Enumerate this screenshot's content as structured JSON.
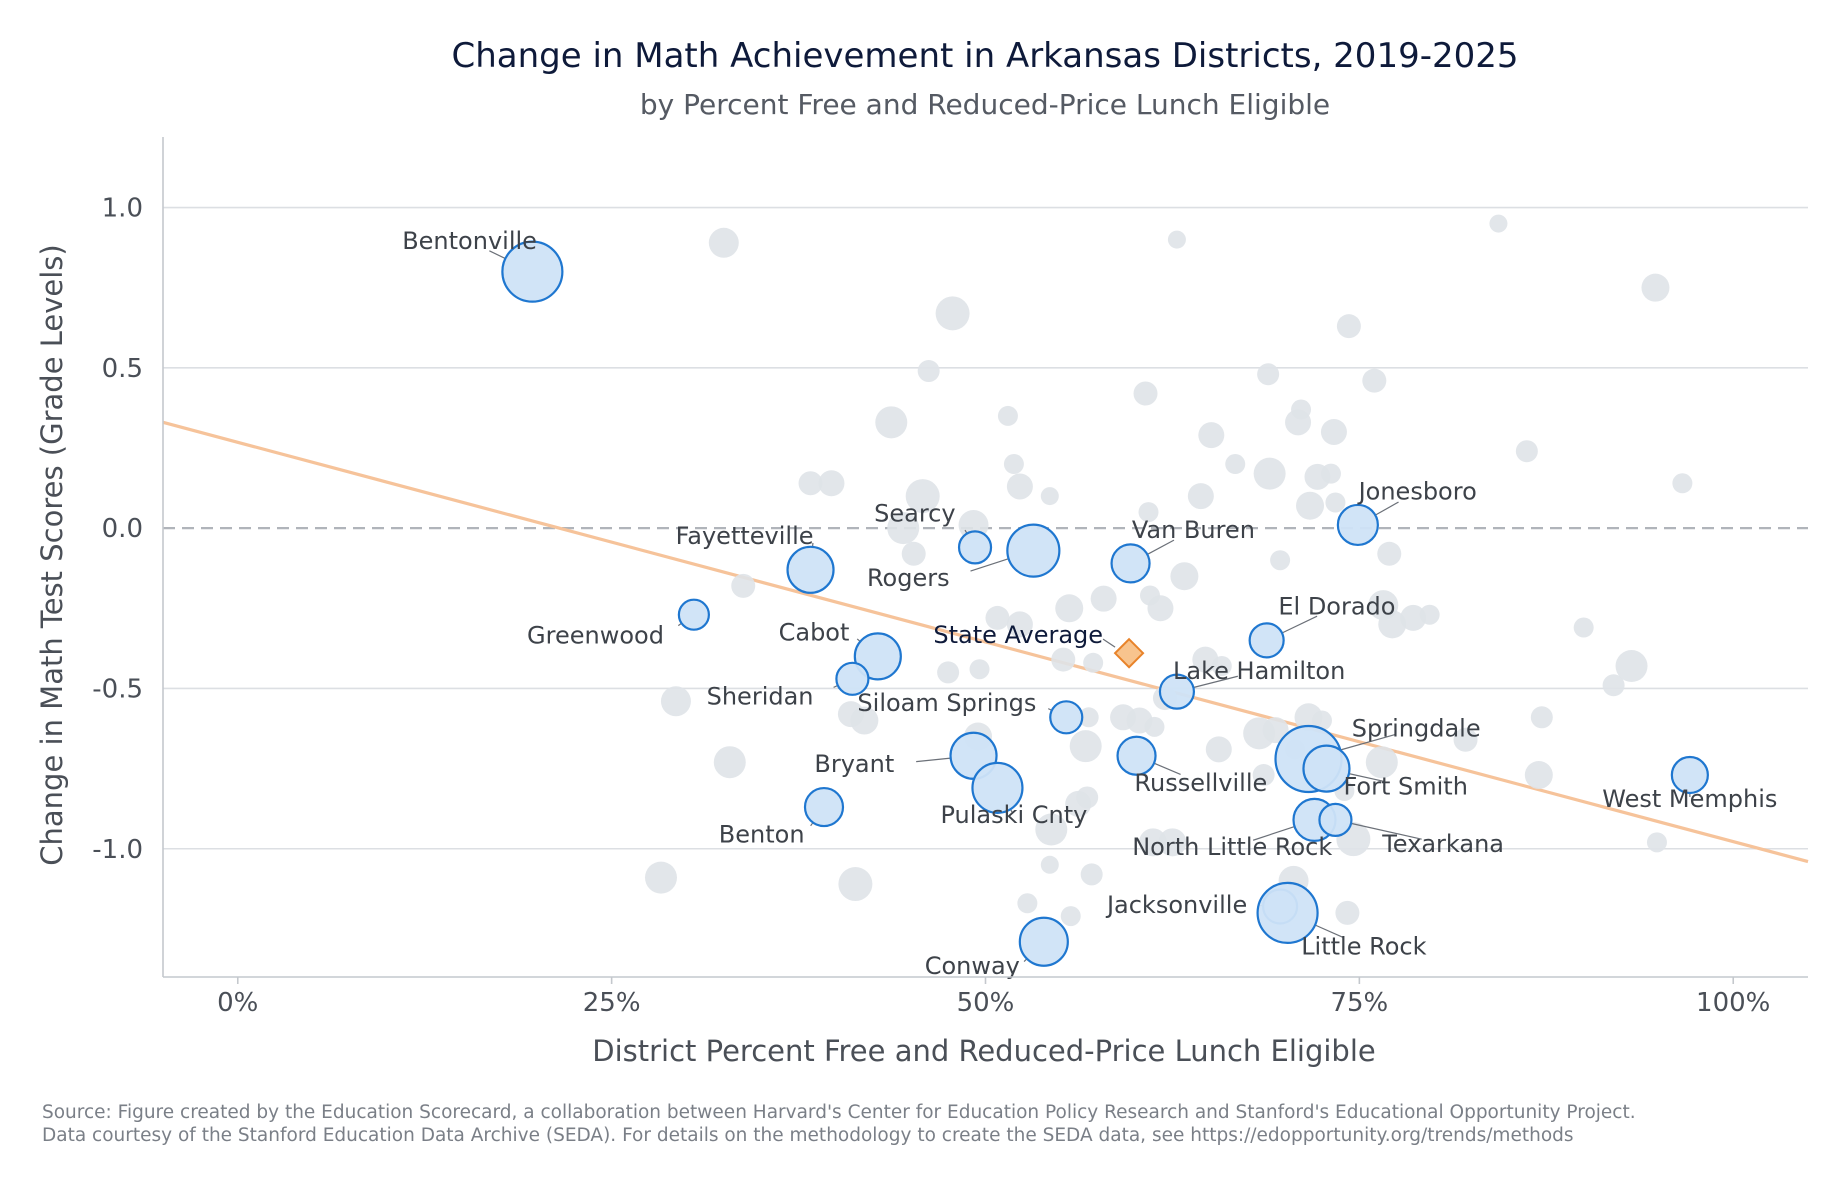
{
  "title": "Change in Math Achievement in Arkansas Districts, 2019-2025",
  "subtitle": "by Percent Free and Reduced-Price Lunch Eligible",
  "source_lines": [
    "Source: Figure created by the Education Scorecard, a collaboration between Harvard's Center for Education Policy Research and Stanford's Educational Opportunity Project.",
    "Data courtesy of the Stanford Education Data Archive (SEDA). For details on the methodology to create the SEDA data, see https://edopportunity.org/trends/methods"
  ],
  "colors": {
    "highlight_fill": "#cfe3f7",
    "highlight_stroke": "#1f77d0",
    "background_points": "#dfe3e8",
    "trend_line": "#f6c39a",
    "state_avg_fill": "#f8c48e",
    "state_avg_stroke": "#e8832a",
    "zero_line": "#b0b4ba",
    "grid": "#dcdfe3"
  },
  "chart_data": {
    "type": "scatter",
    "xlabel": "District Percent Free and Reduced-Price Lunch Eligible",
    "ylabel": "Change in Math Test Scores (Grade Levels)",
    "xlim": [
      -0.05,
      1.05
    ],
    "ylim": [
      -1.4,
      1.22
    ],
    "x_ticks": [
      0,
      0.25,
      0.5,
      0.75,
      1.0
    ],
    "x_tick_labels": [
      "0%",
      "25%",
      "50%",
      "75%",
      "100%"
    ],
    "y_ticks": [
      1.0,
      0.5,
      0.0,
      -0.5,
      -1.0
    ],
    "y_tick_labels": [
      "1.0",
      "0.5",
      "0.0",
      "-0.5",
      "-1.0"
    ],
    "grid": true,
    "zero_reference_line": "dashed",
    "trend_line": [
      [
        -0.05,
        0.33
      ],
      [
        1.05,
        -1.04
      ]
    ],
    "state_average": {
      "label": "State Average",
      "x": 0.596,
      "y": -0.39
    },
    "highlighted_districts": [
      {
        "name": "Bentonville",
        "x": 0.197,
        "y": 0.8,
        "size": 3.0,
        "lx": 0.155,
        "ly": 0.87,
        "anchor": "middle"
      },
      {
        "name": "Greenwood",
        "x": 0.305,
        "y": -0.27,
        "size": 1.5,
        "lx": 0.285,
        "ly": -0.36,
        "anchor": "end"
      },
      {
        "name": "Fayetteville",
        "x": 0.383,
        "y": -0.13,
        "size": 2.3,
        "lx": 0.385,
        "ly": -0.05,
        "anchor": "end"
      },
      {
        "name": "Cabot",
        "x": 0.428,
        "y": -0.4,
        "size": 2.3,
        "lx": 0.409,
        "ly": -0.35,
        "anchor": "end"
      },
      {
        "name": "Sheridan",
        "x": 0.411,
        "y": -0.47,
        "size": 1.6,
        "lx": 0.385,
        "ly": -0.55,
        "anchor": "end"
      },
      {
        "name": "Bryant",
        "x": 0.492,
        "y": -0.71,
        "size": 2.3,
        "lx": 0.439,
        "ly": -0.76,
        "anchor": "end"
      },
      {
        "name": "Benton",
        "x": 0.392,
        "y": -0.87,
        "size": 1.9,
        "lx": 0.379,
        "ly": -0.98,
        "anchor": "end"
      },
      {
        "name": "Searcy",
        "x": 0.493,
        "y": -0.06,
        "size": 1.6,
        "lx": 0.48,
        "ly": 0.02,
        "anchor": "end"
      },
      {
        "name": "Rogers",
        "x": 0.532,
        "y": -0.07,
        "size": 2.6,
        "lx": 0.476,
        "ly": -0.18,
        "anchor": "end"
      },
      {
        "name": "Siloam Springs",
        "x": 0.554,
        "y": -0.59,
        "size": 1.6,
        "lx": 0.534,
        "ly": -0.57,
        "anchor": "end"
      },
      {
        "name": "Pulaski Cnty",
        "x": 0.508,
        "y": -0.81,
        "size": 2.5,
        "lx": 0.519,
        "ly": -0.92,
        "anchor": "middle"
      },
      {
        "name": "Conway",
        "x": 0.539,
        "y": -1.29,
        "size": 2.4,
        "lx": 0.523,
        "ly": -1.39,
        "anchor": "end"
      },
      {
        "name": "Van Buren",
        "x": 0.597,
        "y": -0.11,
        "size": 1.9,
        "lx": 0.639,
        "ly": -0.03,
        "anchor": "middle"
      },
      {
        "name": "Lake Hamilton",
        "x": 0.628,
        "y": -0.51,
        "size": 1.7,
        "lx": 0.683,
        "ly": -0.47,
        "anchor": "middle"
      },
      {
        "name": "Russellville",
        "x": 0.601,
        "y": -0.71,
        "size": 1.9,
        "lx": 0.644,
        "ly": -0.82,
        "anchor": "middle"
      },
      {
        "name": "Jonesboro",
        "x": 0.749,
        "y": 0.01,
        "size": 2.0,
        "lx": 0.789,
        "ly": 0.09,
        "anchor": "middle"
      },
      {
        "name": "El Dorado",
        "x": 0.688,
        "y": -0.35,
        "size": 1.7,
        "lx": 0.735,
        "ly": -0.27,
        "anchor": "middle"
      },
      {
        "name": "Springdale",
        "x": 0.716,
        "y": -0.72,
        "size": 3.3,
        "lx": 0.788,
        "ly": -0.65,
        "anchor": "middle"
      },
      {
        "name": "Fort Smith",
        "x": 0.728,
        "y": -0.75,
        "size": 2.3,
        "lx": 0.781,
        "ly": -0.83,
        "anchor": "middle"
      },
      {
        "name": "North Little Rock",
        "x": 0.72,
        "y": -0.91,
        "size": 2.1,
        "lx": 0.665,
        "ly": -1.02,
        "anchor": "middle"
      },
      {
        "name": "Texarkana",
        "x": 0.734,
        "y": -0.91,
        "size": 1.6,
        "lx": 0.806,
        "ly": -1.01,
        "anchor": "middle"
      },
      {
        "name": "Jacksonville",
        "x": 0.697,
        "y": -1.18,
        "size": 1.7,
        "lx": 0.675,
        "ly": -1.2,
        "anchor": "end"
      },
      {
        "name": "Little Rock",
        "x": 0.702,
        "y": -1.2,
        "size": 3.0,
        "lx": 0.753,
        "ly": -1.33,
        "anchor": "middle"
      },
      {
        "name": "West Memphis",
        "x": 0.971,
        "y": -0.77,
        "size": 1.8,
        "lx": 0.971,
        "ly": -0.87,
        "anchor": "middle"
      }
    ],
    "other_districts": [
      {
        "x": 0.325,
        "y": 0.89,
        "size": 1.5
      },
      {
        "x": 0.478,
        "y": 0.67,
        "size": 1.7
      },
      {
        "x": 0.462,
        "y": 0.49,
        "size": 1.1
      },
      {
        "x": 0.437,
        "y": 0.33,
        "size": 1.6
      },
      {
        "x": 0.515,
        "y": 0.35,
        "size": 1.0
      },
      {
        "x": 0.519,
        "y": 0.2,
        "size": 1.0
      },
      {
        "x": 0.523,
        "y": 0.13,
        "size": 1.3
      },
      {
        "x": 0.458,
        "y": 0.1,
        "size": 1.7
      },
      {
        "x": 0.383,
        "y": 0.14,
        "size": 1.2
      },
      {
        "x": 0.397,
        "y": 0.14,
        "size": 1.3
      },
      {
        "x": 0.543,
        "y": 0.1,
        "size": 0.9
      },
      {
        "x": 0.492,
        "y": 0.01,
        "size": 1.5
      },
      {
        "x": 0.445,
        "y": 0.0,
        "size": 1.6
      },
      {
        "x": 0.338,
        "y": -0.18,
        "size": 1.2
      },
      {
        "x": 0.452,
        "y": -0.08,
        "size": 1.2
      },
      {
        "x": 0.628,
        "y": 0.9,
        "size": 0.9
      },
      {
        "x": 0.607,
        "y": 0.42,
        "size": 1.2
      },
      {
        "x": 0.644,
        "y": 0.1,
        "size": 1.3
      },
      {
        "x": 0.609,
        "y": 0.05,
        "size": 1.0
      },
      {
        "x": 0.633,
        "y": -0.15,
        "size": 1.4
      },
      {
        "x": 0.579,
        "y": -0.22,
        "size": 1.3
      },
      {
        "x": 0.61,
        "y": -0.21,
        "size": 1.0
      },
      {
        "x": 0.617,
        "y": -0.25,
        "size": 1.3
      },
      {
        "x": 0.556,
        "y": -0.25,
        "size": 1.4
      },
      {
        "x": 0.508,
        "y": -0.28,
        "size": 1.2
      },
      {
        "x": 0.523,
        "y": -0.3,
        "size": 1.3
      },
      {
        "x": 0.552,
        "y": -0.41,
        "size": 1.2
      },
      {
        "x": 0.572,
        "y": -0.42,
        "size": 1.0
      },
      {
        "x": 0.475,
        "y": -0.45,
        "size": 1.1
      },
      {
        "x": 0.496,
        "y": -0.44,
        "size": 1.0
      },
      {
        "x": 0.647,
        "y": -0.41,
        "size": 1.3
      },
      {
        "x": 0.658,
        "y": -0.43,
        "size": 1.0
      },
      {
        "x": 0.651,
        "y": 0.29,
        "size": 1.3
      },
      {
        "x": 0.667,
        "y": 0.2,
        "size": 1.0
      },
      {
        "x": 0.689,
        "y": 0.48,
        "size": 1.1
      },
      {
        "x": 0.69,
        "y": 0.17,
        "size": 1.6
      },
      {
        "x": 0.697,
        "y": -0.1,
        "size": 1.0
      },
      {
        "x": 0.709,
        "y": 0.33,
        "size": 1.3
      },
      {
        "x": 0.711,
        "y": 0.37,
        "size": 1.0
      },
      {
        "x": 0.717,
        "y": 0.07,
        "size": 1.4
      },
      {
        "x": 0.722,
        "y": 0.16,
        "size": 1.3
      },
      {
        "x": 0.731,
        "y": 0.17,
        "size": 1.0
      },
      {
        "x": 0.733,
        "y": 0.3,
        "size": 1.3
      },
      {
        "x": 0.734,
        "y": 0.08,
        "size": 1.0
      },
      {
        "x": 0.743,
        "y": 0.63,
        "size": 1.2
      },
      {
        "x": 0.76,
        "y": 0.46,
        "size": 1.2
      },
      {
        "x": 0.77,
        "y": -0.08,
        "size": 1.2
      },
      {
        "x": 0.766,
        "y": -0.24,
        "size": 1.5
      },
      {
        "x": 0.772,
        "y": -0.3,
        "size": 1.4
      },
      {
        "x": 0.786,
        "y": -0.28,
        "size": 1.3
      },
      {
        "x": 0.797,
        "y": -0.27,
        "size": 1.0
      },
      {
        "x": 0.765,
        "y": -0.73,
        "size": 1.6
      },
      {
        "x": 0.821,
        "y": -0.66,
        "size": 1.2
      },
      {
        "x": 0.843,
        "y": 0.95,
        "size": 0.9
      },
      {
        "x": 0.862,
        "y": 0.24,
        "size": 1.1
      },
      {
        "x": 0.87,
        "y": -0.77,
        "size": 1.4
      },
      {
        "x": 0.872,
        "y": -0.59,
        "size": 1.1
      },
      {
        "x": 0.9,
        "y": -0.31,
        "size": 1.0
      },
      {
        "x": 0.92,
        "y": -0.49,
        "size": 1.1
      },
      {
        "x": 0.932,
        "y": -0.43,
        "size": 1.6
      },
      {
        "x": 0.948,
        "y": 0.75,
        "size": 1.4
      },
      {
        "x": 0.949,
        "y": -0.98,
        "size": 1.0
      },
      {
        "x": 0.966,
        "y": 0.14,
        "size": 1.0
      },
      {
        "x": 0.293,
        "y": -0.54,
        "size": 1.5
      },
      {
        "x": 0.329,
        "y": -0.73,
        "size": 1.6
      },
      {
        "x": 0.283,
        "y": -1.09,
        "size": 1.6
      },
      {
        "x": 0.413,
        "y": -1.11,
        "size": 1.7
      },
      {
        "x": 0.419,
        "y": -0.6,
        "size": 1.4
      },
      {
        "x": 0.41,
        "y": -0.58,
        "size": 1.3
      },
      {
        "x": 0.495,
        "y": -0.65,
        "size": 1.4
      },
      {
        "x": 0.528,
        "y": -1.17,
        "size": 1.0
      },
      {
        "x": 0.543,
        "y": -1.05,
        "size": 0.9
      },
      {
        "x": 0.544,
        "y": -0.94,
        "size": 1.6
      },
      {
        "x": 0.557,
        "y": -1.21,
        "size": 1.0
      },
      {
        "x": 0.562,
        "y": -0.86,
        "size": 1.3
      },
      {
        "x": 0.568,
        "y": -0.84,
        "size": 1.1
      },
      {
        "x": 0.571,
        "y": -1.08,
        "size": 1.1
      },
      {
        "x": 0.567,
        "y": -0.68,
        "size": 1.6
      },
      {
        "x": 0.569,
        "y": -0.59,
        "size": 1.0
      },
      {
        "x": 0.592,
        "y": -0.59,
        "size": 1.3
      },
      {
        "x": 0.603,
        "y": -0.6,
        "size": 1.3
      },
      {
        "x": 0.613,
        "y": -0.62,
        "size": 1.0
      },
      {
        "x": 0.62,
        "y": -0.53,
        "size": 1.2
      },
      {
        "x": 0.612,
        "y": -0.98,
        "size": 1.4
      },
      {
        "x": 0.625,
        "y": -0.98,
        "size": 1.4
      },
      {
        "x": 0.656,
        "y": -0.69,
        "size": 1.3
      },
      {
        "x": 0.683,
        "y": -0.64,
        "size": 1.6
      },
      {
        "x": 0.694,
        "y": -0.63,
        "size": 1.3
      },
      {
        "x": 0.707,
        "y": -0.69,
        "size": 1.0
      },
      {
        "x": 0.716,
        "y": -0.59,
        "size": 1.4
      },
      {
        "x": 0.725,
        "y": -0.6,
        "size": 1.0
      },
      {
        "x": 0.686,
        "y": -0.77,
        "size": 1.1
      },
      {
        "x": 0.706,
        "y": -1.1,
        "size": 1.5
      },
      {
        "x": 0.742,
        "y": -1.2,
        "size": 1.2
      },
      {
        "x": 0.746,
        "y": -0.97,
        "size": 1.7
      },
      {
        "x": 0.74,
        "y": -0.82,
        "size": 1.0
      }
    ]
  }
}
